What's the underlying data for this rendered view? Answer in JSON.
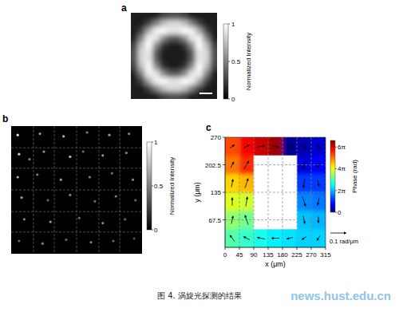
{
  "chart_data": [
    {
      "panel": "a",
      "type": "image",
      "color": "gray",
      "cells": [
        [
          0.1,
          0.1,
          0.1,
          0.1,
          0.25,
          0.3,
          0.3,
          0.25,
          0.1,
          0.1,
          0.1,
          0.1
        ],
        [
          0.1,
          0.1,
          0.25,
          0.5,
          0.75,
          0.85,
          0.85,
          0.75,
          0.5,
          0.25,
          0.1,
          0.1
        ],
        [
          0.1,
          0.25,
          0.65,
          0.95,
          1,
          0.9,
          0.9,
          1,
          0.95,
          0.65,
          0.25,
          0.1
        ],
        [
          0.1,
          0.5,
          0.95,
          0.9,
          0.55,
          0.35,
          0.35,
          0.55,
          0.9,
          0.95,
          0.5,
          0.1
        ],
        [
          0.25,
          0.75,
          1,
          0.55,
          0.2,
          0.1,
          0.1,
          0.2,
          0.55,
          1,
          0.75,
          0.25
        ],
        [
          0.3,
          0.85,
          0.9,
          0.35,
          0.1,
          0.1,
          0.1,
          0.1,
          0.35,
          0.9,
          0.85,
          0.3
        ],
        [
          0.3,
          0.85,
          0.9,
          0.35,
          0.1,
          0.1,
          0.1,
          0.1,
          0.35,
          0.9,
          0.85,
          0.3
        ],
        [
          0.25,
          0.75,
          1,
          0.55,
          0.2,
          0.1,
          0.1,
          0.2,
          0.55,
          1,
          0.75,
          0.25
        ],
        [
          0.1,
          0.5,
          0.95,
          0.9,
          0.55,
          0.35,
          0.35,
          0.55,
          0.9,
          0.95,
          0.5,
          0.1
        ],
        [
          0.1,
          0.25,
          0.65,
          0.95,
          1,
          0.9,
          0.9,
          1,
          0.95,
          0.65,
          0.25,
          0.1
        ],
        [
          0.1,
          0.1,
          0.25,
          0.5,
          0.75,
          0.85,
          0.85,
          0.75,
          0.5,
          0.25,
          0.1,
          0.1
        ],
        [
          0.1,
          0.1,
          0.1,
          0.1,
          0.25,
          0.3,
          0.3,
          0.25,
          0.1,
          0.1,
          0.1,
          0.1
        ]
      ],
      "color_range": [
        0,
        1
      ],
      "color_ticks": [
        0,
        0.5,
        1
      ],
      "color_label": "Normalized Intensity"
    },
    {
      "panel": "b",
      "type": "scatter",
      "color": "gray",
      "x": [
        0.05,
        0.22,
        0.4,
        0.58,
        0.75,
        0.9,
        0.06,
        0.14,
        0.25,
        0.45,
        0.55,
        0.7,
        0.88,
        0.05,
        0.2,
        0.38,
        0.6,
        0.77,
        0.93,
        0.08,
        0.28,
        0.45,
        0.64,
        0.8,
        0.95,
        0.1,
        0.3,
        0.52,
        0.7,
        0.87,
        0.06,
        0.24,
        0.42,
        0.61,
        0.78,
        0.94
      ],
      "y": [
        0.93,
        0.94,
        0.92,
        0.95,
        0.93,
        0.94,
        0.78,
        0.74,
        0.8,
        0.76,
        0.8,
        0.77,
        0.79,
        0.6,
        0.62,
        0.58,
        0.6,
        0.63,
        0.58,
        0.44,
        0.42,
        0.46,
        0.41,
        0.45,
        0.42,
        0.27,
        0.25,
        0.28,
        0.24,
        0.27,
        0.1,
        0.08,
        0.11,
        0.09,
        0.1,
        0.12
      ],
      "intensity": [
        0.9,
        0.6,
        0.7,
        0.5,
        0.6,
        0.5,
        0.8,
        0.5,
        0.6,
        0.7,
        0.4,
        0.6,
        0.5,
        0.7,
        0.5,
        0.6,
        0.5,
        0.4,
        0.5,
        0.6,
        0.4,
        0.5,
        0.4,
        0.5,
        0.4,
        0.5,
        0.6,
        0.4,
        0.5,
        0.4,
        0.4,
        0.5,
        0.4,
        0.5,
        0.4,
        0.3
      ],
      "xlim": [
        0,
        1
      ],
      "ylim": [
        0,
        1
      ],
      "xticks": [
        0.17,
        0.33,
        0.5,
        0.67,
        0.83
      ],
      "yticks": [
        0.17,
        0.33,
        0.5,
        0.67,
        0.83
      ],
      "grid": true,
      "tick_labels": false,
      "color_range": [
        0,
        1
      ],
      "color_ticks": [
        0,
        0.5,
        1
      ],
      "color_label": "Normalized Intensity"
    },
    {
      "panel": "c",
      "type": "heatmap",
      "color": "jet",
      "x": [
        22.5,
        67.5,
        112.5,
        157.5,
        202.5,
        247.5,
        292.5
      ],
      "y": [
        22.5,
        67.5,
        112.5,
        157.5,
        202.5,
        247.5
      ],
      "cells": [
        [
          9.42,
          8.8,
          8.17,
          7.54,
          7.23,
          6.91,
          6.91
        ],
        [
          10.68,
          10.05,
          null,
          null,
          null,
          6.6,
          6.28
        ],
        [
          12.25,
          11.94,
          null,
          null,
          null,
          5.34,
          5.03
        ],
        [
          13.82,
          14.45,
          null,
          null,
          null,
          3.77,
          3.77
        ],
        [
          15.71,
          17.28,
          null,
          null,
          null,
          1.88,
          2.51
        ],
        [
          16.65,
          18.22,
          19.16,
          20.11,
          0.31,
          0.94,
          1.57
        ]
      ],
      "xlim": [
        0,
        315
      ],
      "ylim": [
        0,
        270
      ],
      "xticks": [
        0,
        45,
        90,
        135,
        180,
        225,
        270,
        315
      ],
      "yticks": [
        67.5,
        135,
        202.5,
        270
      ],
      "x_label": "x (μm)",
      "y_label": "y (μm)",
      "grid": true,
      "color_range": [
        0,
        20.73
      ],
      "color_ticks": [
        0,
        {
          "value": 6.2832,
          "label": "2π"
        },
        {
          "value": 12.5664,
          "label": "4π"
        },
        {
          "value": 18.8496,
          "label": "6π"
        }
      ],
      "color_label": "Phase (rad)",
      "vectors": {
        "x": [
          22.5,
          67.5,
          112.5,
          157.5,
          202.5,
          247.5,
          292.5,
          22.5,
          67.5,
          247.5,
          292.5,
          22.5,
          67.5,
          247.5,
          292.5,
          22.5,
          67.5,
          247.5,
          292.5,
          22.5,
          67.5,
          247.5,
          292.5,
          22.5,
          67.5,
          112.5,
          157.5,
          202.5,
          247.5,
          292.5
        ],
        "y": [
          22.5,
          22.5,
          22.5,
          22.5,
          22.5,
          22.5,
          22.5,
          67.5,
          67.5,
          67.5,
          67.5,
          112.5,
          112.5,
          112.5,
          112.5,
          157.5,
          157.5,
          157.5,
          157.5,
          202.5,
          202.5,
          202.5,
          202.5,
          247.5,
          247.5,
          247.5,
          247.5,
          247.5,
          247.5,
          247.5
        ],
        "u": [
          -0.03,
          -0.04,
          -0.05,
          -0.05,
          -0.04,
          -0.03,
          -0.02,
          0.01,
          -0.02,
          0.01,
          0,
          0,
          0.01,
          0.02,
          -0.01,
          0.01,
          0.02,
          -0.01,
          0.01,
          0.02,
          0.03,
          -0.02,
          -0.02,
          0.03,
          0.04,
          0.05,
          0.05,
          0.04,
          0.03,
          0.02
        ],
        "v": [
          0.04,
          0.02,
          0.01,
          0,
          -0.01,
          -0.02,
          -0.03,
          0.05,
          0.06,
          -0.05,
          -0.04,
          0.05,
          0.06,
          -0.06,
          -0.05,
          0.05,
          0.06,
          -0.06,
          -0.04,
          0.04,
          0.05,
          -0.05,
          -0.04,
          0.02,
          0.02,
          0.01,
          -0.01,
          -0.02,
          -0.03,
          -0.03
        ]
      },
      "reference_vector": 0.1,
      "reference_label": "0.1 rad/μm"
    }
  ],
  "caption": "图 4. 涡旋光探测的结果",
  "watermark": "news.hust.edu.cn"
}
